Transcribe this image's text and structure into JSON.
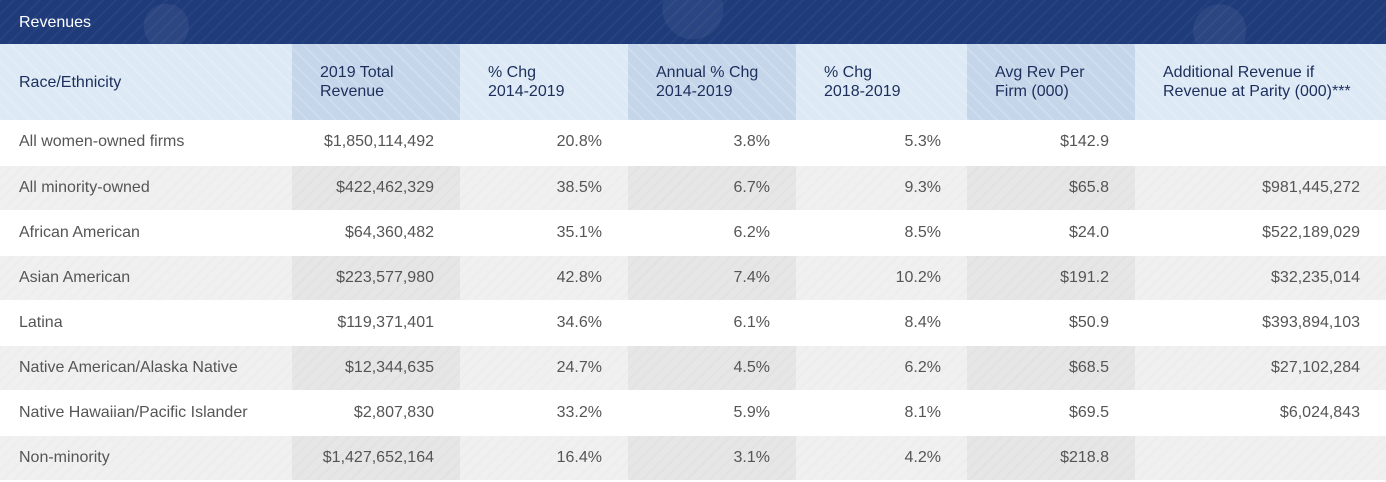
{
  "title": "Revenues",
  "headers": [
    "Race/Ethnicity",
    "2019 Total\nRevenue",
    "% Chg\n2014-2019",
    "Annual % Chg\n2014-2019",
    "% Chg\n2018-2019",
    "Avg Rev Per\nFirm (000)",
    "Additional Revenue if\nRevenue at Parity (000)***"
  ],
  "rows": [
    [
      "All women-owned firms",
      "$1,850,114,492",
      "20.8%",
      "3.8%",
      "5.3%",
      "$142.9",
      ""
    ],
    [
      "All minority-owned",
      "$422,462,329",
      "38.5%",
      "6.7%",
      "9.3%",
      "$65.8",
      "$981,445,272"
    ],
    [
      "African American",
      "$64,360,482",
      "35.1%",
      "6.2%",
      "8.5%",
      "$24.0",
      "$522,189,029"
    ],
    [
      "Asian American",
      "$223,577,980",
      "42.8%",
      "7.4%",
      "10.2%",
      "$191.2",
      "$32,235,014"
    ],
    [
      "Latina",
      "$119,371,401",
      "34.6%",
      "6.1%",
      "8.4%",
      "$50.9",
      "$393,894,103"
    ],
    [
      "Native American/Alaska Native",
      "$12,344,635",
      "24.7%",
      "4.5%",
      "6.2%",
      "$68.5",
      "$27,102,284"
    ],
    [
      "Native Hawaiian/Pacific Islander",
      "$2,807,830",
      "33.2%",
      "5.9%",
      "8.1%",
      "$69.5",
      "$6,024,843"
    ],
    [
      "Non-minority",
      "$1,427,652,164",
      "16.4%",
      "3.1%",
      "4.2%",
      "$218.8",
      ""
    ]
  ]
}
